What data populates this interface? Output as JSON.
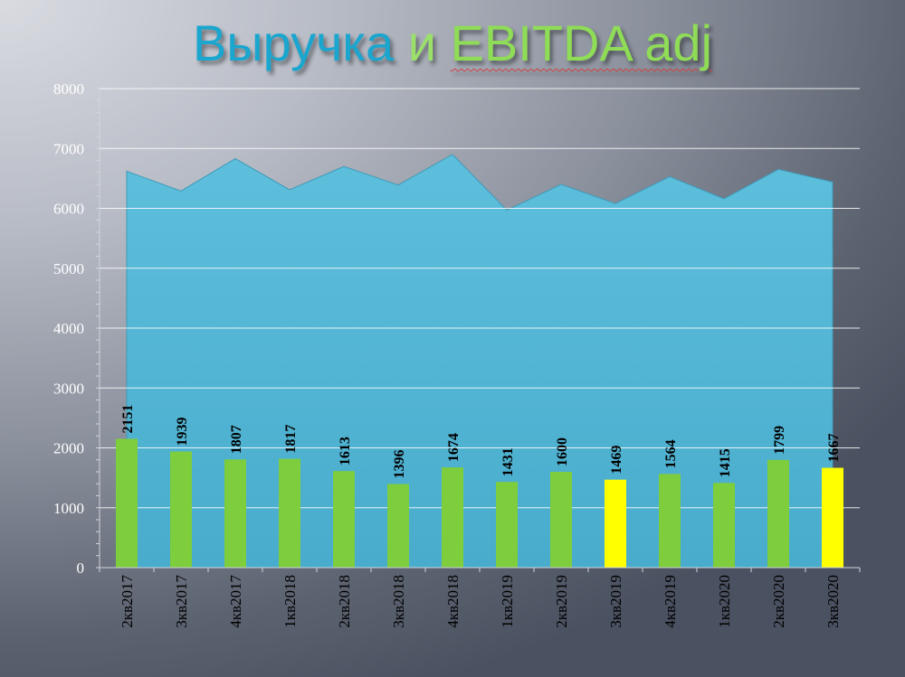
{
  "title": {
    "part1": "Выручка",
    "part2": " и ",
    "part3": "EBITDA adj"
  },
  "colors": {
    "area": "#5bbcd9",
    "bar": "#7dcd3d",
    "bar_highlight": "#ffff00",
    "grid": "#ffffff"
  },
  "chart_data": {
    "type": "bar",
    "categories": [
      "2кв2017",
      "3кв2017",
      "4кв2017",
      "1кв2018",
      "2кв2018",
      "3кв2018",
      "4кв2018",
      "1кв2019",
      "2кв2019",
      "3кв2019",
      "4кв2019",
      "1кв2020",
      "2кв2020",
      "3кв2020"
    ],
    "series": [
      {
        "chart": "area",
        "values": [
          6620,
          6290,
          6830,
          6310,
          6700,
          6390,
          6900,
          5970,
          6400,
          6080,
          6530,
          6160,
          6650,
          6440
        ]
      },
      {
        "chart": "bar",
        "values": [
          2151,
          1939,
          1807,
          1817,
          1613,
          1396,
          1674,
          1431,
          1600,
          1469,
          1564,
          1415,
          1799,
          1667
        ],
        "highlighted": [
          "3кв2019",
          "3кв2020"
        ]
      }
    ],
    "y_ticks": [
      "0",
      "1000",
      "2000",
      "3000",
      "4000",
      "5000",
      "6000",
      "7000",
      "8000"
    ],
    "ylim": [
      0,
      8000
    ],
    "grid": true,
    "legend": "none"
  }
}
